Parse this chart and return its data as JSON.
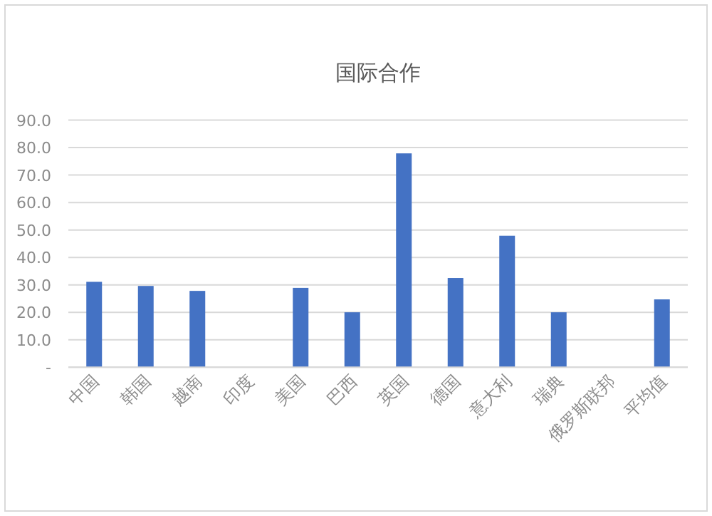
{
  "chart_data": {
    "type": "bar",
    "title": "国际合作",
    "categories": [
      "中国",
      "韩国",
      "越南",
      "印度",
      "美国",
      "巴西",
      "英国",
      "德国",
      "意大利",
      "瑞典",
      "俄罗斯联邦",
      "平均值"
    ],
    "values": [
      31.1,
      29.6,
      27.8,
      0,
      28.9,
      20.0,
      77.9,
      32.5,
      47.9,
      20.0,
      0,
      24.7
    ],
    "color": "#4472c4",
    "ylim": [
      0,
      90
    ],
    "yticks": [
      {
        "value": 0,
        "label": "-"
      },
      {
        "value": 10,
        "label": "10.0"
      },
      {
        "value": 20,
        "label": "20.0"
      },
      {
        "value": 30,
        "label": "30.0"
      },
      {
        "value": 40,
        "label": "40.0"
      },
      {
        "value": 50,
        "label": "50.0"
      },
      {
        "value": 60,
        "label": "60.0"
      },
      {
        "value": 70,
        "label": "70.0"
      },
      {
        "value": 80,
        "label": "80.0"
      },
      {
        "value": 90,
        "label": "90.0"
      }
    ],
    "grid": "y"
  }
}
